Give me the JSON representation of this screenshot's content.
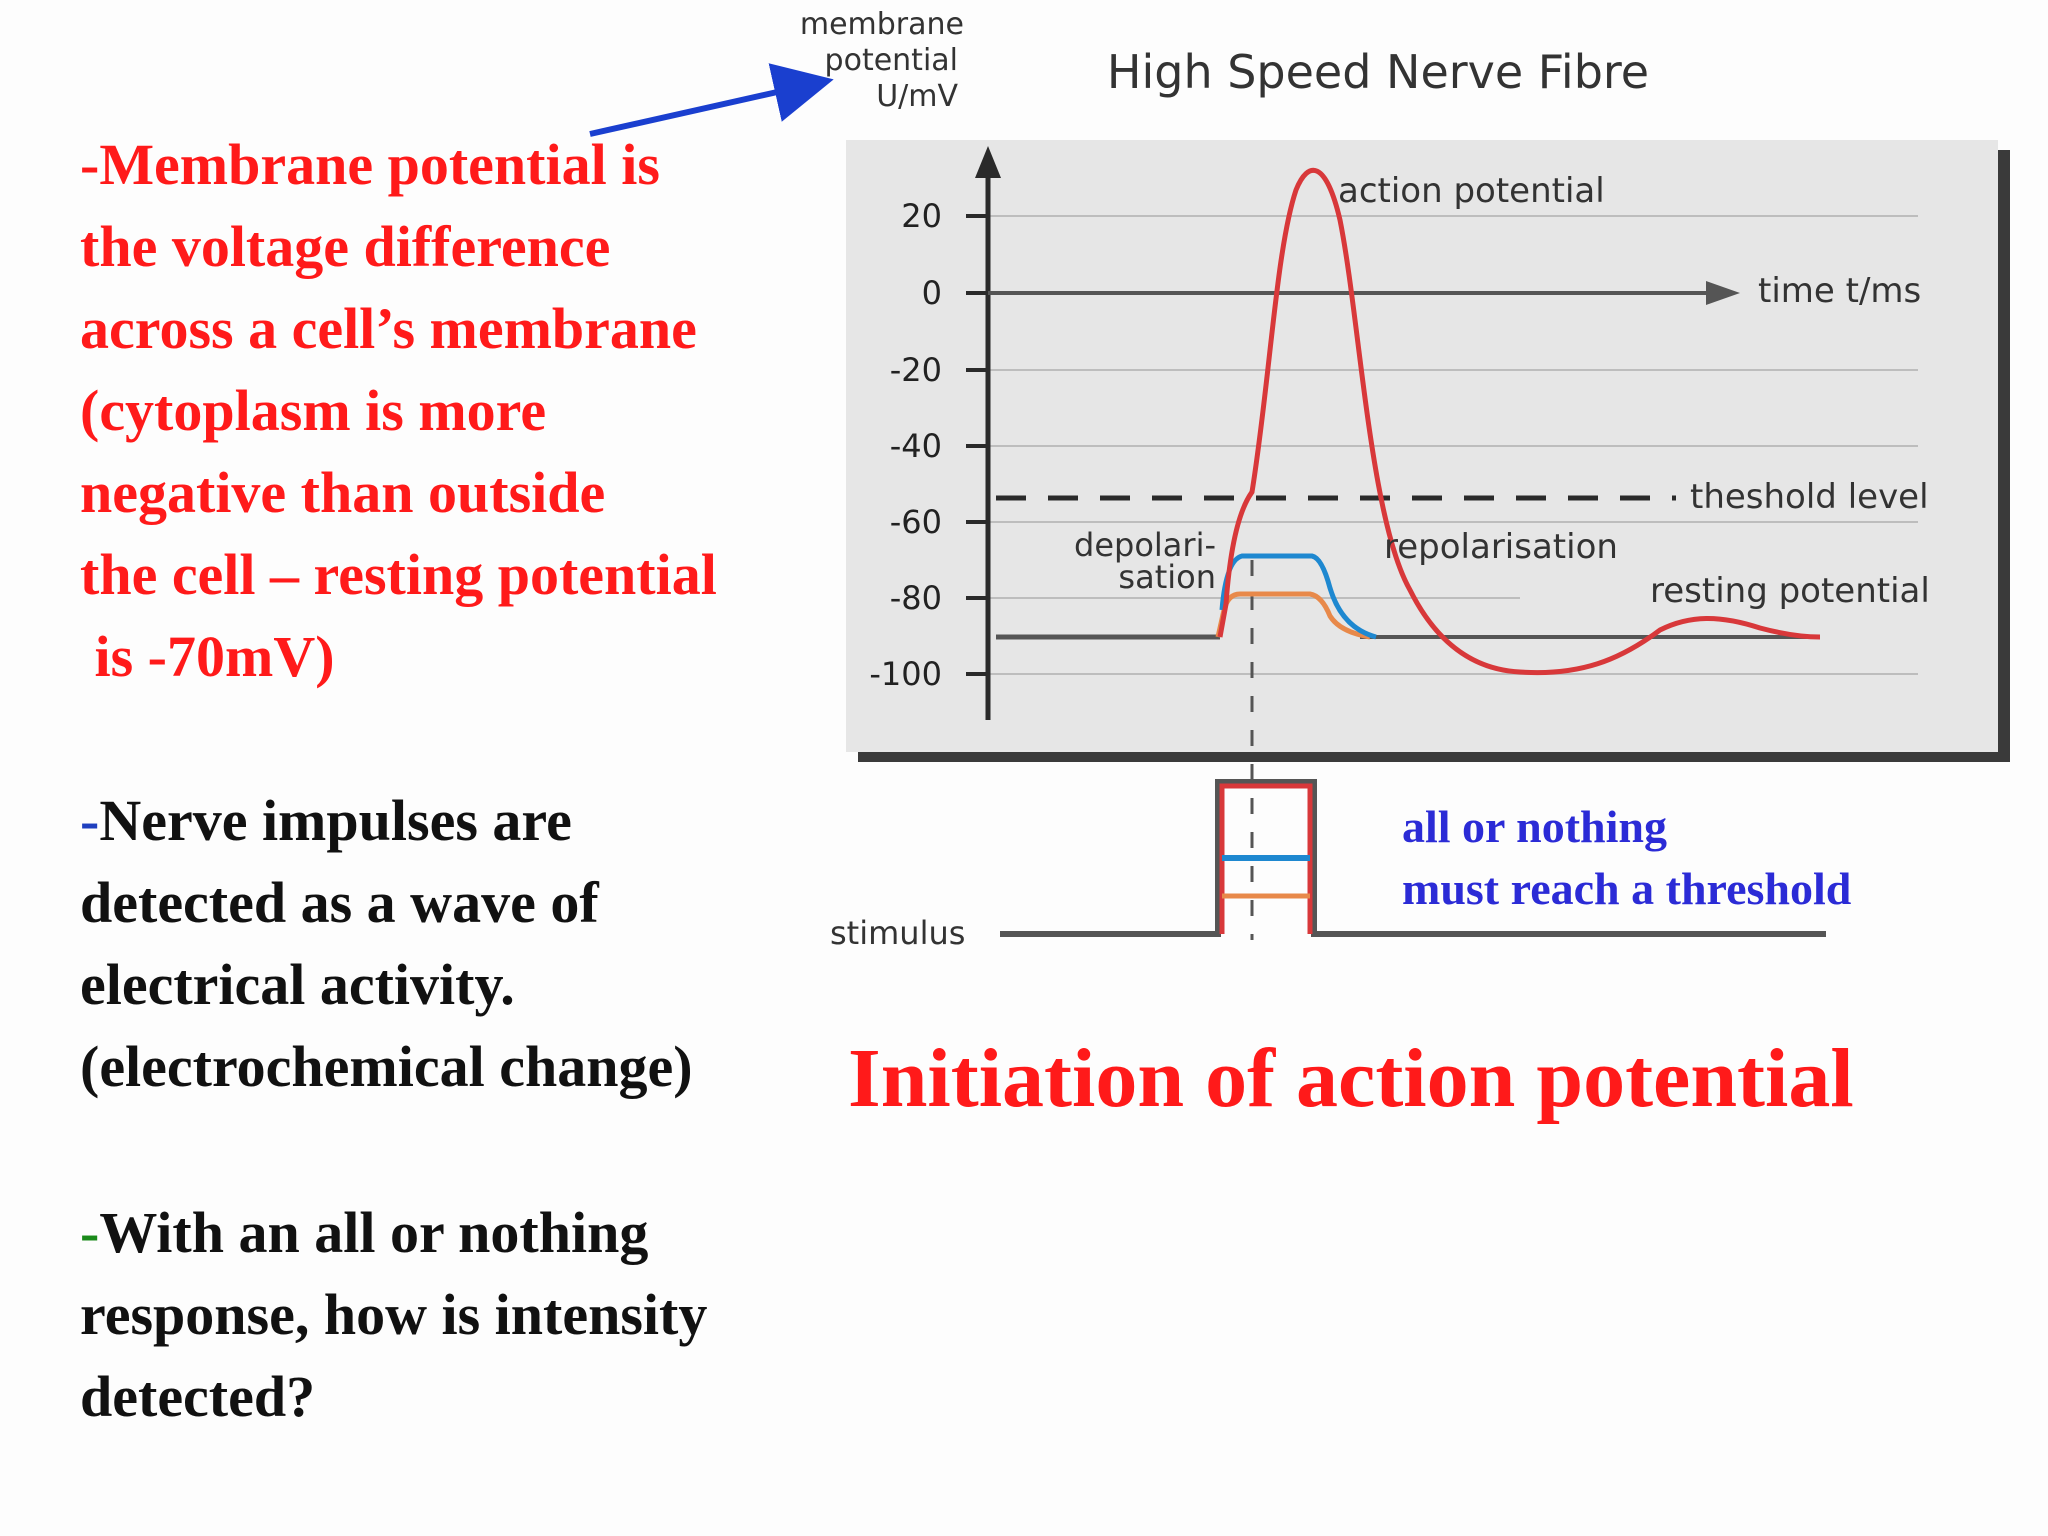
{
  "text_block_1": {
    "lines": [
      "-Membrane potential is",
      "the voltage difference",
      "across a cell’s membrane",
      "(cytoplasm is more",
      "negative than outside",
      "the cell – resting potential",
      " is -70mV)"
    ]
  },
  "text_block_2": {
    "dash": "-",
    "first_line": "Nerve impulses are",
    "lines": [
      "detected as a wave of",
      "electrical activity.",
      "(electrochemical change)"
    ]
  },
  "text_block_3": {
    "dash": "-",
    "first_line": "With an all or nothing",
    "lines": [
      "response, how is intensity",
      "detected?"
    ]
  },
  "figure": {
    "title": "High Speed Nerve Fibre",
    "y_axis_label": [
      "membrane",
      "potential",
      "U/mV"
    ],
    "x_axis_label": "time t/ms",
    "y_ticks": [
      "20",
      "0",
      "-20",
      "-40",
      "-60",
      "-80",
      "-100"
    ],
    "labels": {
      "action_potential": "action potential",
      "threshold": "theshold level",
      "depolarisation": [
        "depolari-",
        "sation"
      ],
      "repolarisation": "repolarisation",
      "resting_potential": "resting potential",
      "stimulus": "stimulus"
    },
    "colors": {
      "red": "#d8383a",
      "blue": "#1e88d0",
      "orange": "#e8894a",
      "arrow": "#1a3fcf",
      "panel": "#e6e6e6"
    }
  },
  "notes": [
    "all or nothing",
    "must reach a threshold"
  ],
  "main_title": "Initiation of action potential"
}
